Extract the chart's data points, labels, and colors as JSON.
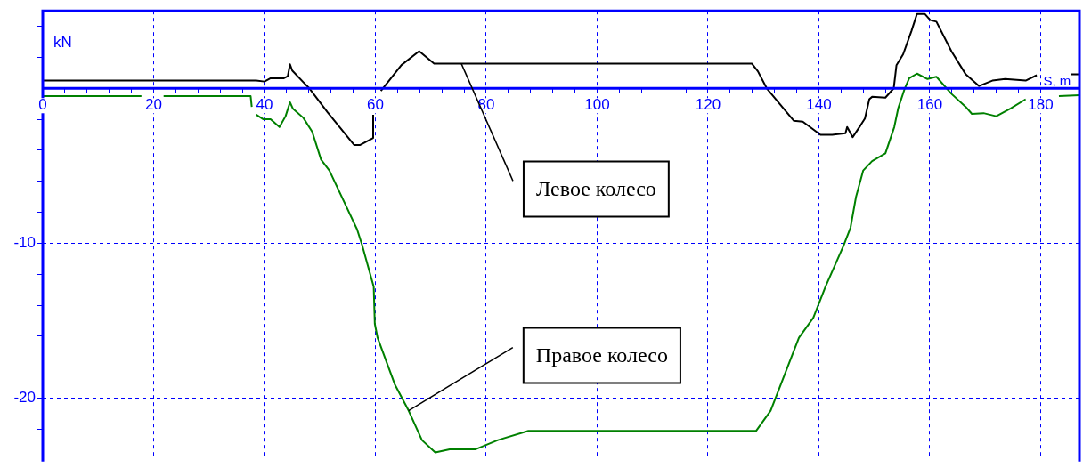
{
  "chart_data": {
    "type": "line",
    "xlabel": "S, m",
    "ylabel": "kN",
    "xlim": [
      0,
      187
    ],
    "ylim": [
      -23.8,
      5
    ],
    "xticks": [
      0,
      {
        "value": 4,
        "label": null
      },
      {
        "value": 8,
        "label": null
      },
      {
        "value": 12,
        "label": null
      },
      {
        "value": 16,
        "label": null
      },
      20,
      {
        "value": 24,
        "label": null
      },
      {
        "value": 28,
        "label": null
      },
      {
        "value": 32,
        "label": null
      },
      {
        "value": 36,
        "label": null
      },
      40,
      {
        "value": 44,
        "label": null
      },
      {
        "value": 48,
        "label": null
      },
      {
        "value": 52,
        "label": null
      },
      {
        "value": 56,
        "label": null
      },
      60,
      {
        "value": 64,
        "label": null
      },
      {
        "value": 68,
        "label": null
      },
      {
        "value": 72,
        "label": null
      },
      {
        "value": 76,
        "label": null
      },
      80,
      {
        "value": 84,
        "label": null
      },
      {
        "value": 88,
        "label": null
      },
      {
        "value": 92,
        "label": null
      },
      {
        "value": 96,
        "label": null
      },
      100,
      {
        "value": 104,
        "label": null
      },
      {
        "value": 108,
        "label": null
      },
      {
        "value": 112,
        "label": null
      },
      {
        "value": 116,
        "label": null
      },
      120,
      {
        "value": 124,
        "label": null
      },
      {
        "value": 128,
        "label": null
      },
      {
        "value": 132,
        "label": null
      },
      {
        "value": 136,
        "label": null
      },
      140,
      {
        "value": 144,
        "label": null
      },
      {
        "value": 148,
        "label": null
      },
      {
        "value": 152,
        "label": null
      },
      {
        "value": 156,
        "label": null
      },
      160,
      {
        "value": 164,
        "label": null
      },
      {
        "value": 168,
        "label": null
      },
      {
        "value": 172,
        "label": null
      },
      {
        "value": 176,
        "label": null
      },
      180
    ],
    "yticks": [
      {
        "value": 4,
        "label": null
      },
      {
        "value": 2,
        "label": null
      },
      {
        "value": -2,
        "label": null
      },
      {
        "value": -4,
        "label": null
      },
      {
        "value": -6,
        "label": null
      },
      {
        "value": -8,
        "label": null
      },
      -10,
      {
        "value": -12,
        "label": null
      },
      {
        "value": -14,
        "label": null
      },
      {
        "value": -16,
        "label": null
      },
      {
        "value": -18,
        "label": null
      },
      -20,
      {
        "value": -22,
        "label": null
      }
    ],
    "grid": true,
    "legend": false,
    "marker": "none",
    "line_style": "solid",
    "series": [
      {
        "color": "#000000",
        "x": [
          0,
          38.5,
          40,
          41.1,
          43.5,
          44.2,
          44.6,
          45,
          47,
          48.1,
          51.4,
          56.2,
          57.2,
          59.6,
          59.6,
          60.3,
          61,
          64.7,
          67.9,
          70.6,
          72.7,
          127.9,
          129,
          130.6,
          135.5,
          137.1,
          140.3,
          142.4,
          144.8,
          145.1,
          146.1,
          147.5,
          148.3,
          149.1,
          149.6,
          152,
          153.5,
          154,
          155.2,
          156.7,
          157.7,
          159.1,
          160.1,
          161.2,
          163.9,
          166.5,
          168.9,
          171.3,
          173.6,
          177.3,
          179.3,
          182,
          185.5,
          187
        ],
        "values": [
          0.5,
          0.5,
          0.44,
          0.65,
          0.65,
          0.78,
          1.55,
          1.15,
          0.4,
          0,
          -1.55,
          -3.66,
          -3.66,
          -3.2,
          -1.7,
          null,
          -0.17,
          1.5,
          2.4,
          1.6,
          1.6,
          1.6,
          1.1,
          0,
          -2.1,
          -2.15,
          -3.0,
          -3.0,
          -2.9,
          -2.5,
          -3.15,
          -2.4,
          -1.95,
          -0.7,
          -0.55,
          -0.6,
          0,
          1.5,
          2.2,
          3.7,
          4.8,
          4.8,
          4.4,
          4.3,
          2.4,
          0.9,
          0.15,
          0.5,
          0.6,
          0.5,
          0.85,
          null,
          0.9,
          0.9
        ]
      },
      {
        "color": "#008000",
        "x": [
          0,
          17.8,
          19.8,
          21.8,
          37.5,
          37.7,
          38.1,
          38.5,
          39.8,
          41.1,
          42.7,
          43.8,
          44.6,
          45.1,
          47,
          48.6,
          50.2,
          51.7,
          56.7,
          57.6,
          59.7,
          59.9,
          60.4,
          63.5,
          66,
          68.4,
          70.8,
          73.4,
          78,
          82.1,
          87.6,
          92,
          128.7,
          131.3,
          136.4,
          139,
          141.2,
          144.4,
          145.7,
          146.7,
          148,
          149.6,
          152,
          153.6,
          154.3,
          155.5,
          156.3,
          157.7,
          159.6,
          161.2,
          163.9,
          166.5,
          167.6,
          169.7,
          172,
          174.6,
          177.3,
          180,
          183.3,
          187
        ],
        "values": [
          -0.5,
          -0.5,
          null,
          -0.5,
          -0.5,
          -1.2,
          null,
          -1.7,
          -2.0,
          -2.0,
          -2.5,
          -1.8,
          -0.9,
          -1.3,
          -1.9,
          -2.8,
          -4.6,
          -5.3,
          -9.1,
          -10.1,
          -12.8,
          -15.2,
          -16.1,
          -19.1,
          -20.8,
          -22.7,
          -23.5,
          -23.3,
          -23.3,
          -22.7,
          -22.1,
          -22.1,
          -22.1,
          -20.8,
          -16.1,
          -14.8,
          -12.8,
          -10.2,
          -9.0,
          -7.0,
          -5.3,
          -4.7,
          -4.2,
          -2.5,
          -1.3,
          0,
          0.65,
          0.95,
          0.6,
          0.75,
          -0.35,
          -1.2,
          -1.65,
          -1.6,
          -1.8,
          -1.3,
          -0.7,
          null,
          -0.5,
          -0.45
        ]
      }
    ],
    "annotations": [
      {
        "text": "Левое колесо",
        "x": 75.5,
        "y": 1.6
      },
      {
        "text": "Правое колесо",
        "x": 66,
        "y": -20.8
      }
    ]
  }
}
